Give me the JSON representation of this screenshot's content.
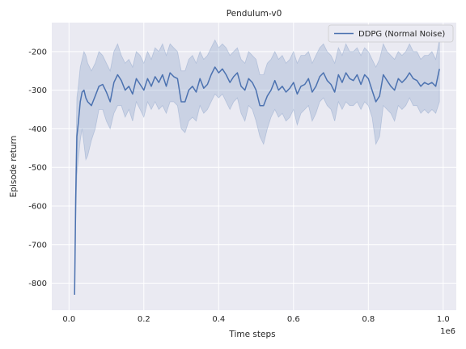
{
  "chart_data": {
    "type": "line",
    "title": "Pendulum-v0",
    "xlabel": "Time steps",
    "ylabel": "Episode return",
    "x_multiplier_label": "1e6",
    "xlim": [
      -0.046,
      1.035
    ],
    "ylim": [
      -870,
      -125
    ],
    "x_ticks": [
      0.0,
      0.2,
      0.4,
      0.6,
      0.8,
      1.0
    ],
    "x_tick_labels": [
      "0.0",
      "0.2",
      "0.4",
      "0.6",
      "0.8",
      "1.0"
    ],
    "y_ticks": [
      -800,
      -700,
      -600,
      -500,
      -400,
      -300,
      -200
    ],
    "y_tick_labels": [
      "-800",
      "-700",
      "-600",
      "-500",
      "-400",
      "-300",
      "-200"
    ],
    "grid": true,
    "legend_position": "top-right",
    "series": [
      {
        "name": "DDPG (Normal Noise)",
        "color": "#4c72b0",
        "band_color": "#4c72b0",
        "x": [
          0.015,
          0.018,
          0.021,
          0.025,
          0.03,
          0.035,
          0.04,
          0.045,
          0.05,
          0.06,
          0.07,
          0.08,
          0.09,
          0.1,
          0.11,
          0.12,
          0.13,
          0.14,
          0.15,
          0.16,
          0.17,
          0.18,
          0.19,
          0.2,
          0.21,
          0.22,
          0.23,
          0.24,
          0.25,
          0.26,
          0.27,
          0.28,
          0.29,
          0.3,
          0.31,
          0.32,
          0.33,
          0.34,
          0.35,
          0.36,
          0.37,
          0.38,
          0.39,
          0.4,
          0.41,
          0.42,
          0.43,
          0.44,
          0.45,
          0.46,
          0.47,
          0.48,
          0.49,
          0.5,
          0.51,
          0.52,
          0.53,
          0.54,
          0.55,
          0.56,
          0.57,
          0.58,
          0.59,
          0.6,
          0.61,
          0.62,
          0.63,
          0.64,
          0.65,
          0.66,
          0.67,
          0.68,
          0.69,
          0.7,
          0.71,
          0.72,
          0.73,
          0.74,
          0.75,
          0.76,
          0.77,
          0.78,
          0.79,
          0.8,
          0.81,
          0.82,
          0.83,
          0.84,
          0.85,
          0.86,
          0.87,
          0.88,
          0.89,
          0.9,
          0.91,
          0.92,
          0.93,
          0.94,
          0.95,
          0.96,
          0.97,
          0.98,
          0.99
        ],
        "y": [
          -830,
          -580,
          -420,
          -385,
          -330,
          -305,
          -300,
          -320,
          -330,
          -340,
          -315,
          -290,
          -285,
          -305,
          -330,
          -280,
          -260,
          -275,
          -300,
          -290,
          -310,
          -270,
          -285,
          -300,
          -270,
          -290,
          -265,
          -280,
          -260,
          -290,
          -255,
          -265,
          -270,
          -330,
          -330,
          -300,
          -290,
          -305,
          -270,
          -295,
          -285,
          -260,
          -240,
          -255,
          -245,
          -260,
          -280,
          -265,
          -255,
          -290,
          -300,
          -270,
          -280,
          -300,
          -340,
          -340,
          -315,
          -300,
          -275,
          -300,
          -290,
          -305,
          -295,
          -280,
          -310,
          -290,
          -285,
          -270,
          -305,
          -290,
          -265,
          -255,
          -275,
          -285,
          -305,
          -260,
          -280,
          -255,
          -270,
          -275,
          -260,
          -285,
          -260,
          -270,
          -300,
          -330,
          -315,
          -260,
          -275,
          -290,
          -300,
          -270,
          -280,
          -270,
          -255,
          -270,
          -275,
          -290,
          -280,
          -285,
          -280,
          -290,
          -245
        ],
        "lower": [
          -830,
          -640,
          -520,
          -480,
          -430,
          -400,
          -440,
          -480,
          -470,
          -430,
          -400,
          -350,
          -350,
          -380,
          -400,
          -360,
          -340,
          -340,
          -370,
          -350,
          -380,
          -330,
          -350,
          -370,
          -330,
          -350,
          -330,
          -350,
          -340,
          -360,
          -330,
          -330,
          -340,
          -400,
          -410,
          -380,
          -370,
          -380,
          -340,
          -360,
          -350,
          -330,
          -310,
          -320,
          -310,
          -330,
          -350,
          -330,
          -320,
          -360,
          -380,
          -340,
          -350,
          -380,
          -420,
          -440,
          -400,
          -370,
          -350,
          -370,
          -360,
          -380,
          -370,
          -350,
          -390,
          -360,
          -350,
          -340,
          -380,
          -360,
          -330,
          -320,
          -340,
          -350,
          -380,
          -330,
          -350,
          -330,
          -340,
          -340,
          -330,
          -350,
          -330,
          -340,
          -370,
          -440,
          -420,
          -340,
          -350,
          -360,
          -380,
          -340,
          -350,
          -340,
          -320,
          -340,
          -340,
          -360,
          -350,
          -360,
          -350,
          -360,
          -330
        ],
        "upper": [
          -830,
          -520,
          -320,
          -290,
          -240,
          -220,
          -200,
          -210,
          -230,
          -250,
          -230,
          -200,
          -210,
          -230,
          -250,
          -200,
          -180,
          -210,
          -230,
          -220,
          -240,
          -200,
          -210,
          -230,
          -200,
          -220,
          -190,
          -200,
          -180,
          -210,
          -180,
          -190,
          -200,
          -250,
          -250,
          -220,
          -210,
          -230,
          -200,
          -220,
          -210,
          -190,
          -170,
          -190,
          -180,
          -190,
          -210,
          -200,
          -190,
          -220,
          -230,
          -200,
          -210,
          -220,
          -260,
          -260,
          -230,
          -220,
          -200,
          -220,
          -210,
          -230,
          -220,
          -200,
          -230,
          -210,
          -210,
          -200,
          -230,
          -210,
          -190,
          -180,
          -200,
          -210,
          -230,
          -190,
          -210,
          -180,
          -200,
          -200,
          -190,
          -210,
          -190,
          -200,
          -220,
          -240,
          -220,
          -180,
          -200,
          -210,
          -220,
          -200,
          -210,
          -200,
          -180,
          -200,
          -200,
          -220,
          -210,
          -210,
          -200,
          -220,
          -170
        ]
      }
    ]
  }
}
